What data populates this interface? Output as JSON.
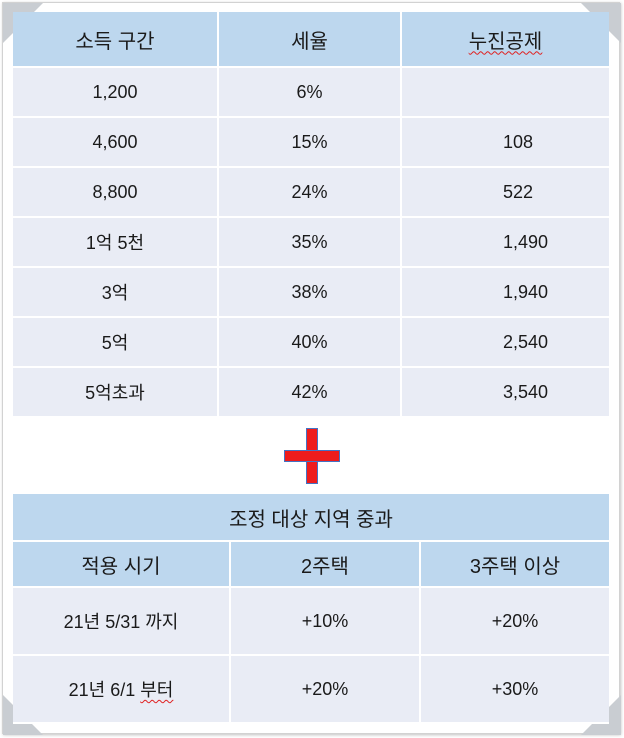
{
  "tax_table": {
    "headers": [
      "소득 구간",
      "세율",
      "누진공제"
    ],
    "rows": [
      {
        "bracket": "1,200",
        "rate": "6%",
        "deduction": ""
      },
      {
        "bracket": "4,600",
        "rate": "15%",
        "deduction": "108"
      },
      {
        "bracket": "8,800",
        "rate": "24%",
        "deduction": "522"
      },
      {
        "bracket": "1억 5천",
        "rate": "35%",
        "deduction": "1,490"
      },
      {
        "bracket": "3억",
        "rate": "38%",
        "deduction": "1,940"
      },
      {
        "bracket": "5억",
        "rate": "40%",
        "deduction": "2,540"
      },
      {
        "bracket": "5억초과",
        "rate": "42%",
        "deduction": "3,540"
      }
    ]
  },
  "plus_sign": {
    "icon": "plus-icon",
    "fill_color": "#ee1c1c",
    "outline_color": "#4472c4"
  },
  "surcharge_table": {
    "title": "조정 대상 지역 중과",
    "headers": [
      "적용 시기",
      "2주택",
      "3주택 이상"
    ],
    "rows": [
      {
        "period": "21년 5/31 까지",
        "two_homes": "+10%",
        "three_plus": "+20%"
      },
      {
        "period_prefix": "21년 6/1 ",
        "period_word": "부터",
        "two_homes": "+20%",
        "three_plus": "+30%"
      }
    ]
  },
  "colors": {
    "header_bg": "#bdd7ee",
    "row_bg": "#e9ecf5",
    "corner": "#c9cdd2"
  }
}
